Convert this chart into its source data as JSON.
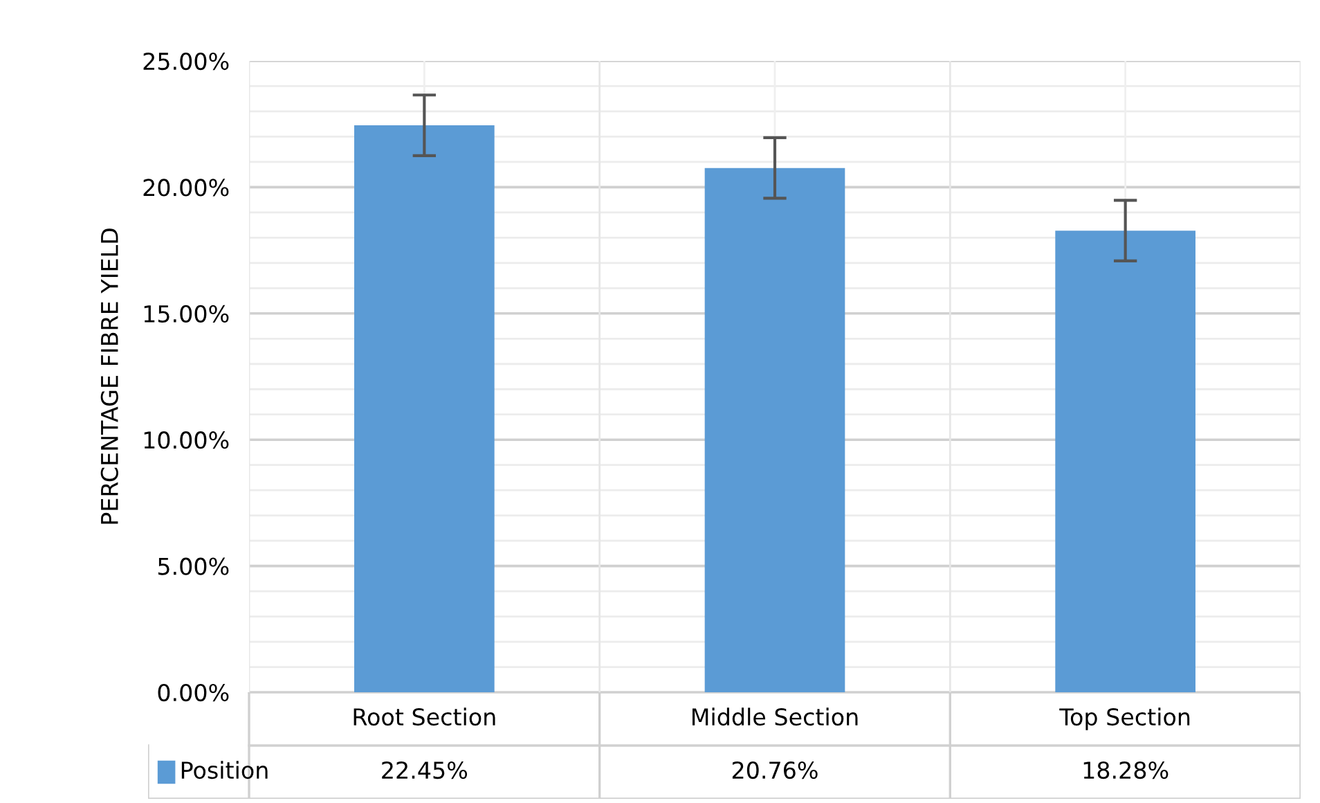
{
  "chart_data": {
    "type": "bar",
    "ylabel": "PERCENTAGE FIBRE YIELD",
    "categories": [
      "Root Section",
      "Middle Section",
      "Top Section"
    ],
    "series": [
      {
        "name": "Position",
        "color": "#5b9bd5",
        "values": [
          22.45,
          20.76,
          18.28
        ],
        "errors": [
          1.2,
          1.2,
          1.2
        ],
        "value_labels": [
          "22.45%",
          "20.76%",
          "18.28%"
        ]
      }
    ],
    "ylim": [
      0,
      25
    ],
    "yticks": [
      {
        "value": 0,
        "label": "0.00%"
      },
      {
        "value": 1,
        "label": null
      },
      {
        "value": 2,
        "label": null
      },
      {
        "value": 3,
        "label": null
      },
      {
        "value": 4,
        "label": null
      },
      {
        "value": 5,
        "label": "5.00%"
      },
      {
        "value": 6,
        "label": null
      },
      {
        "value": 7,
        "label": null
      },
      {
        "value": 8,
        "label": null
      },
      {
        "value": 9,
        "label": null
      },
      {
        "value": 10,
        "label": "10.00%"
      },
      {
        "value": 11,
        "label": null
      },
      {
        "value": 12,
        "label": null
      },
      {
        "value": 13,
        "label": null
      },
      {
        "value": 14,
        "label": null
      },
      {
        "value": 15,
        "label": "15.00%"
      },
      {
        "value": 16,
        "label": null
      },
      {
        "value": 17,
        "label": null
      },
      {
        "value": 18,
        "label": null
      },
      {
        "value": 19,
        "label": null
      },
      {
        "value": 20,
        "label": "20.00%"
      },
      {
        "value": 21,
        "label": null
      },
      {
        "value": 22,
        "label": null
      },
      {
        "value": 23,
        "label": null
      },
      {
        "value": 24,
        "label": null
      },
      {
        "value": 25,
        "label": "25.00%"
      }
    ],
    "grid": true,
    "legend": "bottom"
  }
}
